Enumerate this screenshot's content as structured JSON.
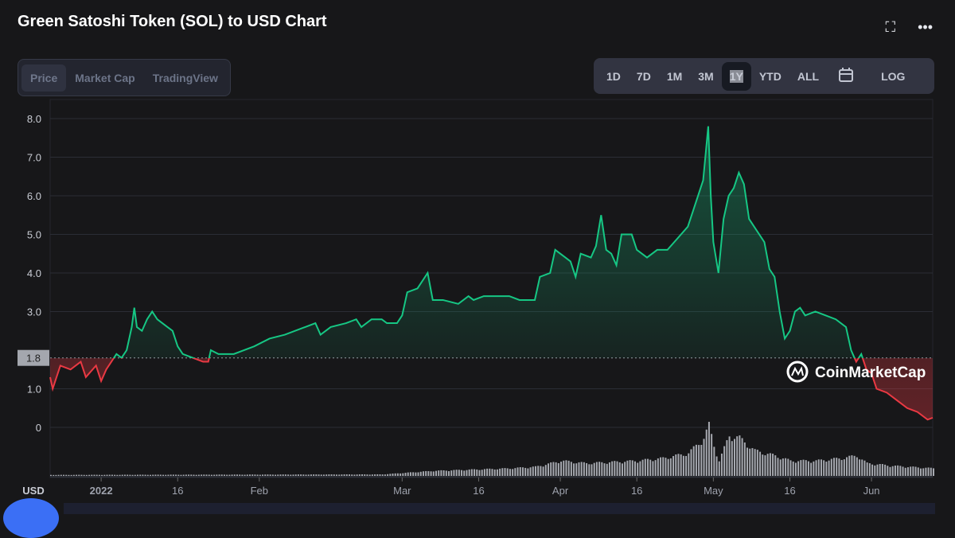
{
  "header": {
    "title": "Green Satoshi Token (SOL) to USD Chart"
  },
  "tabs": [
    {
      "label": "Price",
      "active": true
    },
    {
      "label": "Market Cap"
    },
    {
      "label": "TradingView"
    }
  ],
  "ranges": [
    {
      "label": "1D"
    },
    {
      "label": "7D"
    },
    {
      "label": "1M"
    },
    {
      "label": "3M"
    },
    {
      "label": "1Y",
      "active": true
    },
    {
      "label": "YTD"
    },
    {
      "label": "ALL"
    },
    {
      "label": "LOG"
    }
  ],
  "icons": {
    "fullscreen": "expand-icon",
    "more": "more-icon",
    "calendar": "calendar-icon"
  },
  "watermark": "CoinMarketCap",
  "colors": {
    "up": "#16c784",
    "down": "#ea3943",
    "grid": "#2b2d35"
  },
  "chart_data": {
    "type": "line",
    "title": "Green Satoshi Token (SOL) to USD Chart",
    "ylabel": "USD",
    "xlabel": "",
    "ylim": [
      0,
      8
    ],
    "yticks": [
      "8.0",
      "7.0",
      "6.0",
      "5.0",
      "4.0",
      "3.0",
      "1.0",
      "0"
    ],
    "ytick_values": [
      8,
      7,
      6,
      5,
      4,
      3,
      1,
      0
    ],
    "reference_line": {
      "value": 1.8,
      "label": "1.8"
    },
    "x_unit": "days since 2022-01-01",
    "xlim": [
      -10,
      163
    ],
    "xticks": [
      {
        "label": "2022",
        "day": 0
      },
      {
        "label": "16",
        "day": 15
      },
      {
        "label": "Feb",
        "day": 31
      },
      {
        "label": "Mar",
        "day": 59
      },
      {
        "label": "16",
        "day": 74
      },
      {
        "label": "Apr",
        "day": 90
      },
      {
        "label": "16",
        "day": 105
      },
      {
        "label": "May",
        "day": 120
      },
      {
        "label": "16",
        "day": 135
      },
      {
        "label": "Jun",
        "day": 151
      }
    ],
    "price": [
      [
        -10,
        1.3
      ],
      [
        -9.5,
        1.0
      ],
      [
        -8,
        1.6
      ],
      [
        -6,
        1.5
      ],
      [
        -4,
        1.7
      ],
      [
        -3,
        1.3
      ],
      [
        -1,
        1.6
      ],
      [
        0,
        1.2
      ],
      [
        1,
        1.5
      ],
      [
        2,
        1.7
      ],
      [
        3,
        1.9
      ],
      [
        4,
        1.8
      ],
      [
        5,
        2.0
      ],
      [
        6,
        2.6
      ],
      [
        6.5,
        3.1
      ],
      [
        7,
        2.6
      ],
      [
        8,
        2.5
      ],
      [
        9,
        2.8
      ],
      [
        10,
        3.0
      ],
      [
        11,
        2.8
      ],
      [
        12,
        2.7
      ],
      [
        13,
        2.6
      ],
      [
        14,
        2.5
      ],
      [
        15,
        2.1
      ],
      [
        16,
        1.9
      ],
      [
        18,
        1.8
      ],
      [
        20,
        1.7
      ],
      [
        21,
        1.7
      ],
      [
        21.5,
        2.0
      ],
      [
        23,
        1.9
      ],
      [
        26,
        1.9
      ],
      [
        30,
        2.1
      ],
      [
        33,
        2.3
      ],
      [
        36,
        2.4
      ],
      [
        40,
        2.6
      ],
      [
        42,
        2.7
      ],
      [
        43,
        2.4
      ],
      [
        45,
        2.6
      ],
      [
        48,
        2.7
      ],
      [
        50,
        2.8
      ],
      [
        51,
        2.6
      ],
      [
        53,
        2.8
      ],
      [
        55,
        2.8
      ],
      [
        56,
        2.7
      ],
      [
        58,
        2.7
      ],
      [
        59,
        2.9
      ],
      [
        60,
        3.5
      ],
      [
        62,
        3.6
      ],
      [
        64,
        4.0
      ],
      [
        65,
        3.3
      ],
      [
        67,
        3.3
      ],
      [
        70,
        3.2
      ],
      [
        72,
        3.4
      ],
      [
        73,
        3.3
      ],
      [
        75,
        3.4
      ],
      [
        80,
        3.4
      ],
      [
        82,
        3.3
      ],
      [
        85,
        3.3
      ],
      [
        86,
        3.9
      ],
      [
        88,
        4.0
      ],
      [
        89,
        4.6
      ],
      [
        91,
        4.4
      ],
      [
        92,
        4.3
      ],
      [
        93,
        3.9
      ],
      [
        94,
        4.5
      ],
      [
        96,
        4.4
      ],
      [
        97,
        4.7
      ],
      [
        98,
        5.5
      ],
      [
        99,
        4.6
      ],
      [
        100,
        4.5
      ],
      [
        101,
        4.2
      ],
      [
        102,
        5.0
      ],
      [
        104,
        5.0
      ],
      [
        105,
        4.6
      ],
      [
        107,
        4.4
      ],
      [
        109,
        4.6
      ],
      [
        111,
        4.6
      ],
      [
        113,
        4.9
      ],
      [
        115,
        5.2
      ],
      [
        116,
        5.6
      ],
      [
        118,
        6.4
      ],
      [
        119,
        7.8
      ],
      [
        119.5,
        6.0
      ],
      [
        120,
        4.8
      ],
      [
        121,
        4.0
      ],
      [
        122,
        5.4
      ],
      [
        123,
        6.0
      ],
      [
        124,
        6.2
      ],
      [
        125,
        6.6
      ],
      [
        126,
        6.3
      ],
      [
        127,
        5.4
      ],
      [
        128,
        5.2
      ],
      [
        129,
        5.0
      ],
      [
        130,
        4.8
      ],
      [
        131,
        4.1
      ],
      [
        132,
        3.9
      ],
      [
        133,
        3.0
      ],
      [
        134,
        2.3
      ],
      [
        135,
        2.5
      ],
      [
        136,
        3.0
      ],
      [
        137,
        3.1
      ],
      [
        138,
        2.9
      ],
      [
        140,
        3.0
      ],
      [
        142,
        2.9
      ],
      [
        144,
        2.8
      ],
      [
        146,
        2.6
      ],
      [
        147,
        2.0
      ],
      [
        148,
        1.7
      ],
      [
        149,
        1.9
      ],
      [
        150,
        1.5
      ],
      [
        151,
        1.4
      ],
      [
        152,
        1.0
      ],
      [
        154,
        0.9
      ],
      [
        156,
        0.7
      ],
      [
        158,
        0.5
      ],
      [
        160,
        0.4
      ],
      [
        162,
        0.2
      ],
      [
        163,
        0.25
      ]
    ],
    "volume_relative": [
      [
        -10,
        0.02
      ],
      [
        55,
        0.03
      ],
      [
        65,
        0.1
      ],
      [
        80,
        0.15
      ],
      [
        85,
        0.18
      ],
      [
        88,
        0.25
      ],
      [
        90,
        0.3
      ],
      [
        95,
        0.25
      ],
      [
        105,
        0.3
      ],
      [
        110,
        0.35
      ],
      [
        115,
        0.45
      ],
      [
        118,
        0.75
      ],
      [
        119,
        1.0
      ],
      [
        120,
        0.6
      ],
      [
        121,
        0.3
      ],
      [
        123,
        0.8
      ],
      [
        125,
        0.75
      ],
      [
        128,
        0.5
      ],
      [
        132,
        0.4
      ],
      [
        135,
        0.3
      ],
      [
        140,
        0.3
      ],
      [
        145,
        0.35
      ],
      [
        148,
        0.4
      ],
      [
        150,
        0.25
      ],
      [
        155,
        0.2
      ],
      [
        163,
        0.15
      ]
    ]
  }
}
